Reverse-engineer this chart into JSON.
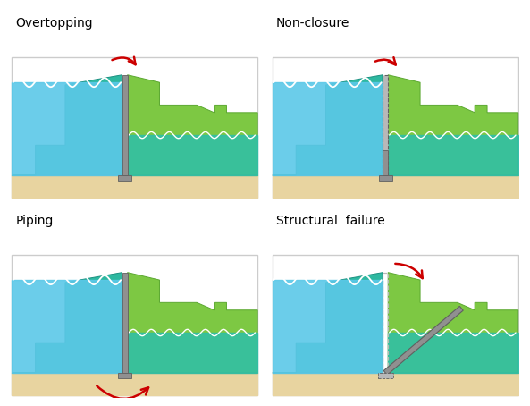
{
  "panels": [
    {
      "label": "Overtopping",
      "row": 0,
      "col": 0
    },
    {
      "label": "Non-closure",
      "row": 0,
      "col": 1
    },
    {
      "label": "Piping",
      "row": 1,
      "col": 0
    },
    {
      "label": "Structural  failure",
      "row": 1,
      "col": 1
    }
  ],
  "colors": {
    "water_blue": "#5BC8E8",
    "embankment_dark_teal": "#2EB8A0",
    "embankment_green": "#7DC843",
    "embankment_green_dark": "#5BA830",
    "sand": "#E8D4A0",
    "sand_line": "#C8A860",
    "gate_gray": "#909090",
    "gate_light": "#B8B8B8",
    "gate_dark": "#606060",
    "teal_water": "#2EBFAA",
    "red": "#CC0000",
    "white": "#FFFFFF",
    "panel_border": "#CCCCCC",
    "wave_teal": "#26A090"
  }
}
